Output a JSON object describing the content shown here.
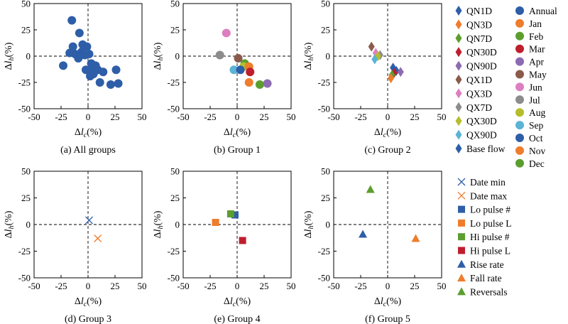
{
  "colors": {
    "blue": "#2E5EA8",
    "orange": "#EE7D2C",
    "green": "#5C9E2E",
    "red": "#BE1E2D",
    "purple": "#8C6BB1",
    "brown": "#8A5A4B",
    "pink": "#DC7FC0",
    "gray": "#8C8C8C",
    "olive": "#B5BD2C",
    "cyan": "#5BB3D6",
    "lightgreen": "#79B536",
    "navy": "#2E5EA8"
  },
  "legend_diamond": [
    {
      "label": "QN1D",
      "color": "#2E5EA8"
    },
    {
      "label": "QN3D",
      "color": "#EE7D2C"
    },
    {
      "label": "QN7D",
      "color": "#5C9E2E"
    },
    {
      "label": "QN30D",
      "color": "#BE1E2D"
    },
    {
      "label": "QN90D",
      "color": "#8C6BB1"
    },
    {
      "label": "QX1D",
      "color": "#8A5A4B"
    },
    {
      "label": "QX3D",
      "color": "#DC7FC0"
    },
    {
      "label": "QX7D",
      "color": "#8C8C8C"
    },
    {
      "label": "QX30D",
      "color": "#B5BD2C"
    },
    {
      "label": "QX90D",
      "color": "#5BB3D6"
    },
    {
      "label": "Base flow",
      "color": "#2E5EA8"
    }
  ],
  "legend_circle": [
    {
      "label": "Annual",
      "color": "#2E5EA8"
    },
    {
      "label": "Jan",
      "color": "#EE7D2C"
    },
    {
      "label": "Feb",
      "color": "#5C9E2E"
    },
    {
      "label": "Mar",
      "color": "#BE1E2D"
    },
    {
      "label": "Apr",
      "color": "#8C6BB1"
    },
    {
      "label": "May",
      "color": "#8A5A4B"
    },
    {
      "label": "Jun",
      "color": "#DC7FC0"
    },
    {
      "label": "Jul",
      "color": "#8C8C8C"
    },
    {
      "label": "Aug",
      "color": "#B5BD2C"
    },
    {
      "label": "Sep",
      "color": "#5BB3D6"
    },
    {
      "label": "Oct",
      "color": "#2E5EA8"
    },
    {
      "label": "Nov",
      "color": "#EE7D2C"
    },
    {
      "label": "Dec",
      "color": "#5C9E2E"
    }
  ],
  "legend_bottom": [
    {
      "label": "Date min",
      "marker": "x",
      "color": "#2E5EA8"
    },
    {
      "label": "Date max",
      "marker": "x",
      "color": "#EE7D2C"
    },
    {
      "label": "Lo pulse #",
      "marker": "square",
      "color": "#2E5EA8"
    },
    {
      "label": "Lo pulse L",
      "marker": "square",
      "color": "#EE7D2C"
    },
    {
      "label": "Hi pulse #",
      "marker": "square",
      "color": "#5C9E2E"
    },
    {
      "label": "Hi pulse L",
      "marker": "square",
      "color": "#BE1E2D"
    },
    {
      "label": "Rise rate",
      "marker": "triangle",
      "color": "#2E5EA8"
    },
    {
      "label": "Fall rate",
      "marker": "triangle",
      "color": "#EE7D2C"
    },
    {
      "label": "Reversals",
      "marker": "triangle",
      "color": "#5C9E2E"
    }
  ],
  "chart_data": [
    {
      "type": "scatter",
      "caption": "(a) All groups",
      "xlabel_main": "Δ",
      "xlabel_sub": "lc",
      "xlabel_unit": "(%)",
      "ylabel_main": "Δ",
      "ylabel_sub": "lh",
      "ylabel_unit": "(%)",
      "xlim": [
        -50,
        50
      ],
      "ylim": [
        -50,
        50
      ],
      "xticks": [
        -50,
        -25,
        0,
        25,
        50
      ],
      "yticks": [
        -50,
        -25,
        0,
        25,
        50
      ],
      "grid": false,
      "points": [
        {
          "x": -15,
          "y": 34,
          "marker": "circle",
          "color": "#2E5EA8"
        },
        {
          "x": -8,
          "y": 22,
          "marker": "circle",
          "color": "#2E5EA8"
        },
        {
          "x": -5,
          "y": 11,
          "marker": "circle",
          "color": "#2E5EA8"
        },
        {
          "x": -14,
          "y": 9,
          "marker": "circle",
          "color": "#2E5EA8"
        },
        {
          "x": -1,
          "y": 9,
          "marker": "circle",
          "color": "#2E5EA8"
        },
        {
          "x": -17,
          "y": 3,
          "marker": "circle",
          "color": "#2E5EA8"
        },
        {
          "x": -12,
          "y": 2,
          "marker": "circle",
          "color": "#2E5EA8"
        },
        {
          "x": -6,
          "y": 4,
          "marker": "circle",
          "color": "#2E5EA8"
        },
        {
          "x": -3,
          "y": 1,
          "marker": "circle",
          "color": "#2E5EA8"
        },
        {
          "x": 1,
          "y": 2,
          "marker": "circle",
          "color": "#2E5EA8"
        },
        {
          "x": -9,
          "y": -2,
          "marker": "circle",
          "color": "#2E5EA8"
        },
        {
          "x": 3,
          "y": -7,
          "marker": "circle",
          "color": "#2E5EA8"
        },
        {
          "x": -23,
          "y": -9,
          "marker": "circle",
          "color": "#2E5EA8"
        },
        {
          "x": 7,
          "y": -9,
          "marker": "circle",
          "color": "#2E5EA8"
        },
        {
          "x": -2,
          "y": -13,
          "marker": "circle",
          "color": "#2E5EA8"
        },
        {
          "x": 1,
          "y": -14,
          "marker": "circle",
          "color": "#2E5EA8"
        },
        {
          "x": 5,
          "y": -12,
          "marker": "circle",
          "color": "#2E5EA8"
        },
        {
          "x": 9,
          "y": -13,
          "marker": "circle",
          "color": "#2E5EA8"
        },
        {
          "x": 14,
          "y": -15,
          "marker": "circle",
          "color": "#2E5EA8"
        },
        {
          "x": 26,
          "y": -13,
          "marker": "circle",
          "color": "#2E5EA8"
        },
        {
          "x": 2,
          "y": -19,
          "marker": "circle",
          "color": "#2E5EA8"
        },
        {
          "x": 5,
          "y": -17,
          "marker": "circle",
          "color": "#2E5EA8"
        },
        {
          "x": 11,
          "y": -25,
          "marker": "circle",
          "color": "#2E5EA8"
        },
        {
          "x": 21,
          "y": -27,
          "marker": "circle",
          "color": "#2E5EA8"
        },
        {
          "x": 28,
          "y": -26,
          "marker": "circle",
          "color": "#2E5EA8"
        }
      ]
    },
    {
      "type": "scatter",
      "caption": "(b) Group 1",
      "xlabel_main": "Δ",
      "xlabel_sub": "lc",
      "xlabel_unit": "(%)",
      "ylabel_main": "Δ",
      "ylabel_sub": "lh",
      "ylabel_unit": "(%)",
      "xlim": [
        -50,
        50
      ],
      "ylim": [
        -50,
        50
      ],
      "xticks": [
        -50,
        -25,
        0,
        25,
        50
      ],
      "yticks": [
        -50,
        -25,
        0,
        25,
        50
      ],
      "grid": false,
      "points": [
        {
          "x": -10,
          "y": 22,
          "marker": "circle",
          "color": "#DC7FC0"
        },
        {
          "x": -16,
          "y": 1,
          "marker": "circle",
          "color": "#8C8C8C"
        },
        {
          "x": 1,
          "y": -2,
          "marker": "circle",
          "color": "#8A5A4B"
        },
        {
          "x": 7,
          "y": -7,
          "marker": "circle",
          "color": "#5C9E2E"
        },
        {
          "x": 6,
          "y": -10,
          "marker": "circle",
          "color": "#B5BD2C"
        },
        {
          "x": 11,
          "y": -10,
          "marker": "circle",
          "color": "#EE7D2C"
        },
        {
          "x": -3,
          "y": -13,
          "marker": "circle",
          "color": "#5BB3D6"
        },
        {
          "x": 3,
          "y": -13,
          "marker": "circle",
          "color": "#2E5EA8"
        },
        {
          "x": 12,
          "y": -15,
          "marker": "circle",
          "color": "#BE1E2D"
        },
        {
          "x": 11,
          "y": -25,
          "marker": "circle",
          "color": "#EE7D2C"
        },
        {
          "x": 21,
          "y": -27,
          "marker": "circle",
          "color": "#5C9E2E"
        },
        {
          "x": 28,
          "y": -26,
          "marker": "circle",
          "color": "#8C6BB1"
        }
      ]
    },
    {
      "type": "scatter",
      "caption": "(c) Group 2",
      "xlabel_main": "Δ",
      "xlabel_sub": "lc",
      "xlabel_unit": "(%)",
      "ylabel_main": "Δ",
      "ylabel_sub": "lh",
      "ylabel_unit": "(%)",
      "xlim": [
        -50,
        50
      ],
      "ylim": [
        -50,
        50
      ],
      "xticks": [
        -50,
        -25,
        0,
        25,
        50
      ],
      "yticks": [
        -50,
        -25,
        0,
        25,
        50
      ],
      "grid": false,
      "points": [
        {
          "x": -15,
          "y": 9,
          "marker": "diamond",
          "color": "#8A5A4B"
        },
        {
          "x": -11,
          "y": 3,
          "marker": "diamond",
          "color": "#DC7FC0"
        },
        {
          "x": -7,
          "y": 1,
          "marker": "diamond",
          "color": "#8C8C8C"
        },
        {
          "x": -9,
          "y": 0,
          "marker": "diamond",
          "color": "#B5BD2C"
        },
        {
          "x": -12,
          "y": -3,
          "marker": "diamond",
          "color": "#5BB3D6"
        },
        {
          "x": 5,
          "y": -11,
          "marker": "diamond",
          "color": "#2E5EA8"
        },
        {
          "x": 8,
          "y": -14,
          "marker": "diamond",
          "color": "#2E5EA8"
        },
        {
          "x": 12,
          "y": -15,
          "marker": "diamond",
          "color": "#8C6BB1"
        },
        {
          "x": 6,
          "y": -16,
          "marker": "diamond",
          "color": "#BE1E2D"
        },
        {
          "x": 4,
          "y": -18,
          "marker": "diamond",
          "color": "#5C9E2E"
        },
        {
          "x": 3,
          "y": -21,
          "marker": "diamond",
          "color": "#EE7D2C"
        }
      ]
    },
    {
      "type": "scatter",
      "caption": "(d) Group 3",
      "xlabel_main": "Δ",
      "xlabel_sub": "lc",
      "xlabel_unit": "(%)",
      "ylabel_main": "Δ",
      "ylabel_sub": "lh",
      "ylabel_unit": "(%)",
      "xlim": [
        -50,
        50
      ],
      "ylim": [
        -50,
        50
      ],
      "xticks": [
        -50,
        -25,
        0,
        25,
        50
      ],
      "yticks": [
        -50,
        -25,
        0,
        25,
        50
      ],
      "grid": false,
      "points": [
        {
          "x": 1,
          "y": 4,
          "marker": "x",
          "color": "#2E5EA8"
        },
        {
          "x": 9,
          "y": -13,
          "marker": "x",
          "color": "#EE7D2C"
        }
      ]
    },
    {
      "type": "scatter",
      "caption": "(e) Group 4",
      "xlabel_main": "Δ",
      "xlabel_sub": "lc",
      "xlabel_unit": "(%)",
      "ylabel_main": "Δ",
      "ylabel_sub": "lh",
      "ylabel_unit": "(%)",
      "xlim": [
        -50,
        50
      ],
      "ylim": [
        -50,
        50
      ],
      "xticks": [
        -50,
        -25,
        0,
        25,
        50
      ],
      "yticks": [
        -50,
        -25,
        0,
        25,
        50
      ],
      "grid": false,
      "points": [
        {
          "x": -2,
          "y": 9,
          "marker": "square",
          "color": "#2E5EA8"
        },
        {
          "x": -6,
          "y": 10,
          "marker": "square",
          "color": "#5C9E2E"
        },
        {
          "x": -20,
          "y": 2,
          "marker": "square",
          "color": "#EE7D2C"
        },
        {
          "x": 5,
          "y": -15,
          "marker": "square",
          "color": "#BE1E2D"
        }
      ]
    },
    {
      "type": "scatter",
      "caption": "(f) Group 5",
      "xlabel_main": "Δ",
      "xlabel_sub": "lc",
      "xlabel_unit": "(%)",
      "ylabel_main": "Δ",
      "ylabel_sub": "lh",
      "ylabel_unit": "(%)",
      "xlim": [
        -50,
        50
      ],
      "ylim": [
        -50,
        50
      ],
      "xticks": [
        -50,
        -25,
        0,
        25,
        50
      ],
      "yticks": [
        -50,
        -25,
        0,
        25,
        50
      ],
      "grid": false,
      "points": [
        {
          "x": -16,
          "y": 33,
          "marker": "triangle",
          "color": "#5C9E2E"
        },
        {
          "x": -23,
          "y": -9,
          "marker": "triangle",
          "color": "#2E5EA8"
        },
        {
          "x": 26,
          "y": -13,
          "marker": "triangle",
          "color": "#EE7D2C"
        }
      ]
    }
  ]
}
